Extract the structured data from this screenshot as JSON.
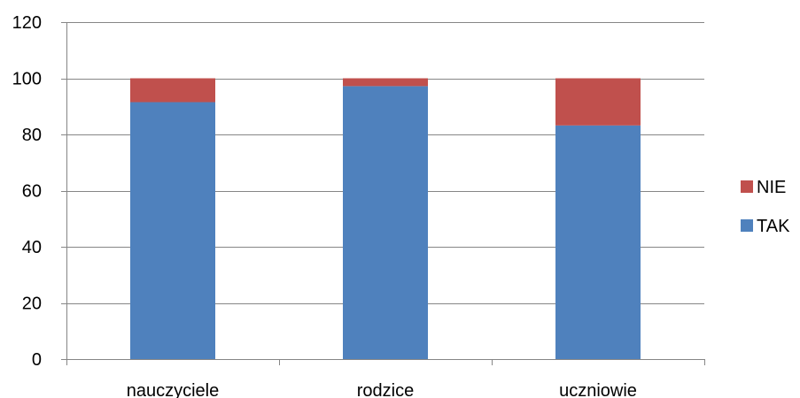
{
  "chart_data": {
    "type": "bar",
    "stacked": true,
    "categories": [
      "nauczyciele",
      "rodzice",
      "uczniowie"
    ],
    "series": [
      {
        "name": "TAK",
        "values": [
          91.5,
          97.2,
          83.2
        ],
        "color": "#4F81BD"
      },
      {
        "name": "NIE",
        "values": [
          8.5,
          2.8,
          16.8
        ],
        "color": "#C0504D"
      }
    ],
    "ylim": [
      0,
      120
    ],
    "yticks": [
      0,
      20,
      40,
      60,
      80,
      100,
      120
    ],
    "grid": true,
    "legend_position": "right",
    "legend_order": [
      "NIE",
      "TAK"
    ],
    "title": "",
    "xlabel": "",
    "ylabel": ""
  }
}
